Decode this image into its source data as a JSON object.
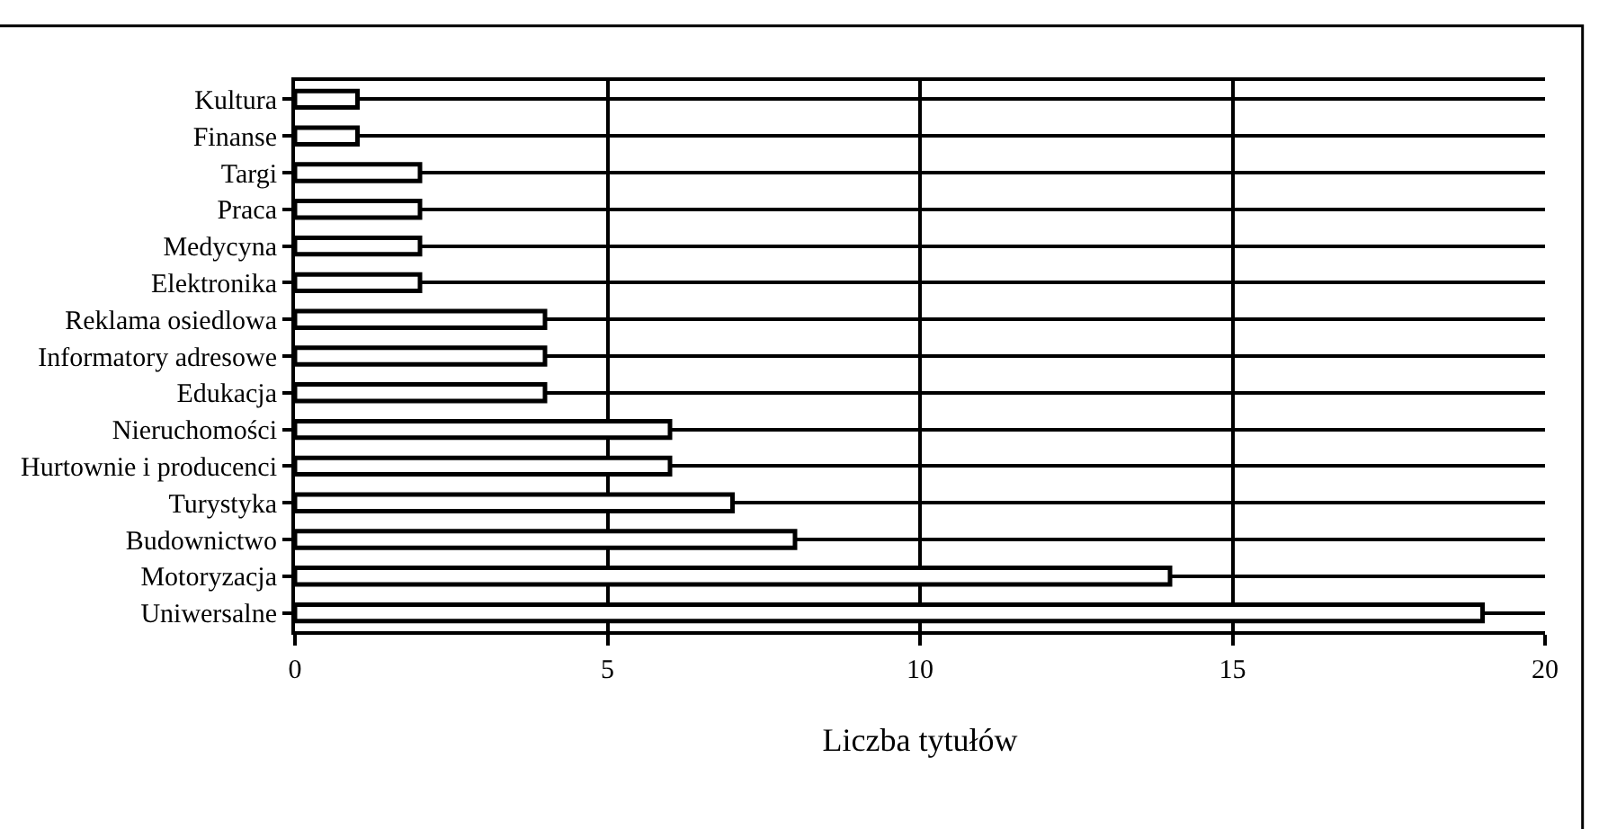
{
  "chart_data": {
    "type": "bar",
    "orientation": "horizontal",
    "xlabel": "Liczba tytułów",
    "categories": [
      "Kultura",
      "Finanse",
      "Targi",
      "Praca",
      "Medycyna",
      "Elektronika",
      "Reklama osiedlowa",
      "Informatory adresowe",
      "Edukacja",
      "Nieruchomości",
      "Hurtownie i producenci",
      "Turystyka",
      "Budownictwo",
      "Motoryzacja",
      "Uniwersalne"
    ],
    "values": [
      1,
      1,
      2,
      2,
      2,
      2,
      4,
      4,
      4,
      6,
      6,
      7,
      8,
      14,
      19
    ],
    "color": "#ffffff",
    "xlim": [
      0,
      20
    ],
    "xticks": [
      0,
      5,
      10,
      15,
      20
    ],
    "grid": true,
    "legend": false
  }
}
